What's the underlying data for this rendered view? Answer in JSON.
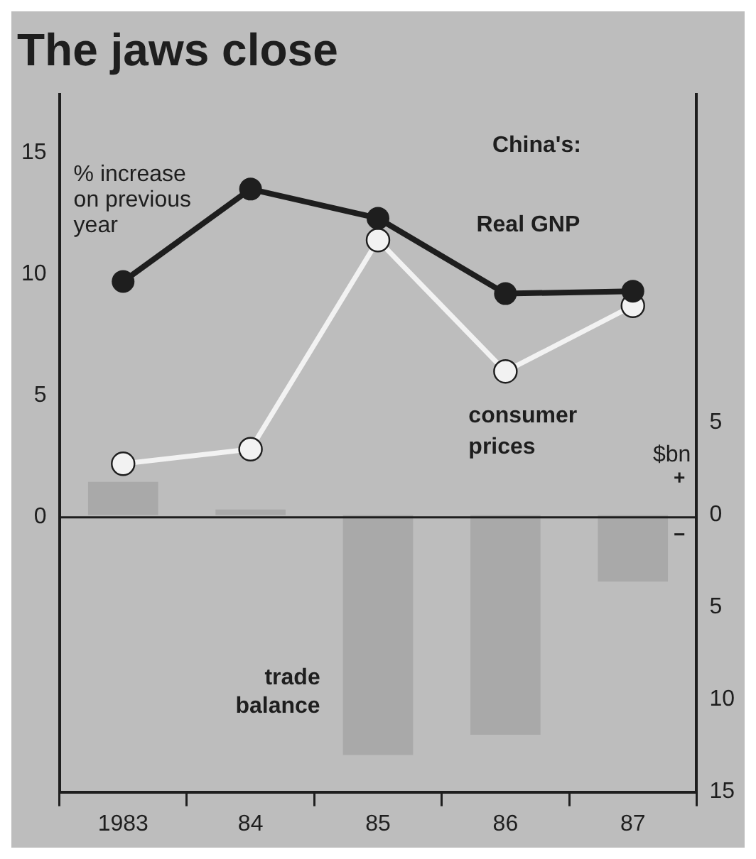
{
  "chart_data": {
    "type": "line",
    "title": "The jaws close",
    "ylabel": "% increase on previous year",
    "y2label": "$bn",
    "categories": [
      "1983",
      "84",
      "85",
      "86",
      "87"
    ],
    "series": [
      {
        "name": "trade balance",
        "type": "bar",
        "axis": "y2",
        "color": "#a9a9a9",
        "values": [
          1.8,
          0.3,
          -13.0,
          -11.9,
          -3.6
        ]
      },
      {
        "name": "Real GNP",
        "color": "#1e1e1e",
        "values": [
          9.7,
          13.5,
          12.3,
          9.2,
          9.3
        ]
      },
      {
        "name": "consumer prices",
        "color": "#f2f2f2",
        "values": [
          2.2,
          2.8,
          11.4,
          6.0,
          8.7
        ]
      }
    ],
    "ylim": [
      -11.3,
      17.4
    ],
    "yticks": [
      0,
      5,
      10,
      15
    ],
    "y2lim": [
      -15,
      22.8
    ],
    "y2ticks": [
      {
        "value": -15,
        "label": "15"
      },
      {
        "value": -10,
        "label": "10"
      },
      {
        "value": -5,
        "label": "5"
      },
      0,
      5
    ],
    "ref_lines": [
      {
        "axis": "y",
        "value": 0
      }
    ],
    "annotations": [
      "China's:",
      "+",
      "−"
    ],
    "marker": "circle",
    "grid": false,
    "legend": false
  }
}
